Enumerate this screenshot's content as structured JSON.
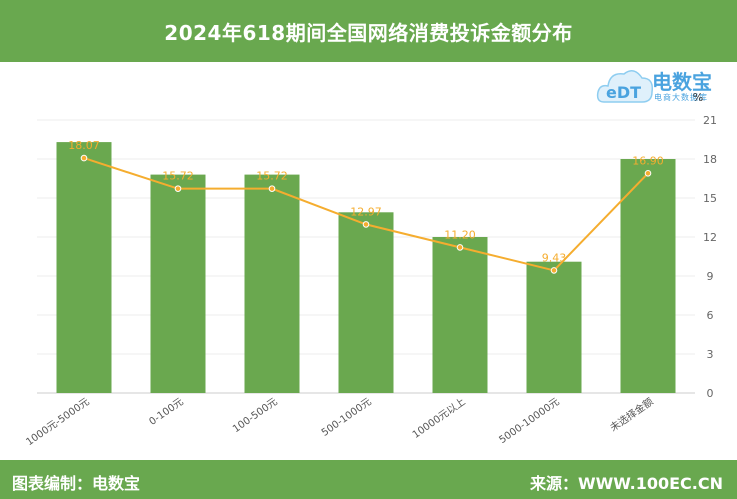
{
  "title": "2024年618期间全国网络消费投诉金额分布",
  "footer": {
    "left": "图表编制：电数宝",
    "right": "来源：WWW.100EC.CN"
  },
  "logo": {
    "brand": "电数宝",
    "sub": "电商大数据库",
    "mark": "eDT"
  },
  "colors": {
    "header": "#69a84f",
    "bar": "#6aa84f",
    "line": "#f5ad2f",
    "label": "#f5ad2f"
  },
  "chart_data": {
    "type": "bar",
    "categories": [
      "1000元-5000元",
      "0-100元",
      "100-500元",
      "500-1000元",
      "10000元以上",
      "5000-10000元",
      "未选择金额"
    ],
    "values": [
      19.3,
      16.8,
      16.8,
      13.9,
      12.0,
      10.1,
      18.0
    ],
    "line_values": [
      18.07,
      15.72,
      15.72,
      12.97,
      11.2,
      9.43,
      16.9
    ],
    "line_labels": [
      "18.07",
      "15.72",
      "15.72",
      "12.97",
      "11.20",
      "9.43",
      "16.90"
    ],
    "ylabel": "%",
    "ylim": [
      0,
      21
    ],
    "yticks": [
      "0",
      "3",
      "6",
      "9",
      "12",
      "15",
      "18",
      "21"
    ],
    "grid": true
  }
}
